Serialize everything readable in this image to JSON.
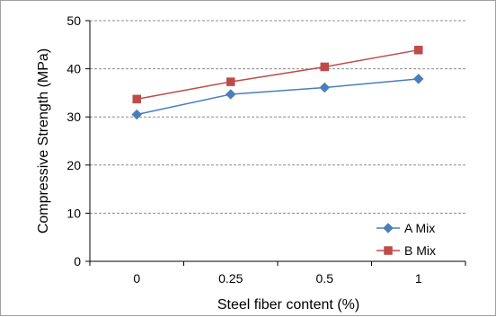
{
  "chart_data": {
    "type": "line",
    "title": "",
    "xlabel": "Steel fiber content (%)",
    "ylabel": "Compressive Strength (MPa)",
    "categories": [
      "0",
      "0.25",
      "0.5",
      "1"
    ],
    "ylim": [
      0,
      50
    ],
    "yticks": [
      "0",
      "10",
      "20",
      "30",
      "40",
      "50"
    ],
    "grid": "horizontal dashed",
    "legend_position": "bottom-right",
    "series": [
      {
        "name": "A Mix",
        "values": [
          30.5,
          34.7,
          36.1,
          37.9
        ],
        "color": "#4A7EBB",
        "marker": "diamond"
      },
      {
        "name": "B Mix",
        "values": [
          33.7,
          37.3,
          40.4,
          43.9
        ],
        "color": "#BE4B48",
        "marker": "square"
      }
    ]
  }
}
